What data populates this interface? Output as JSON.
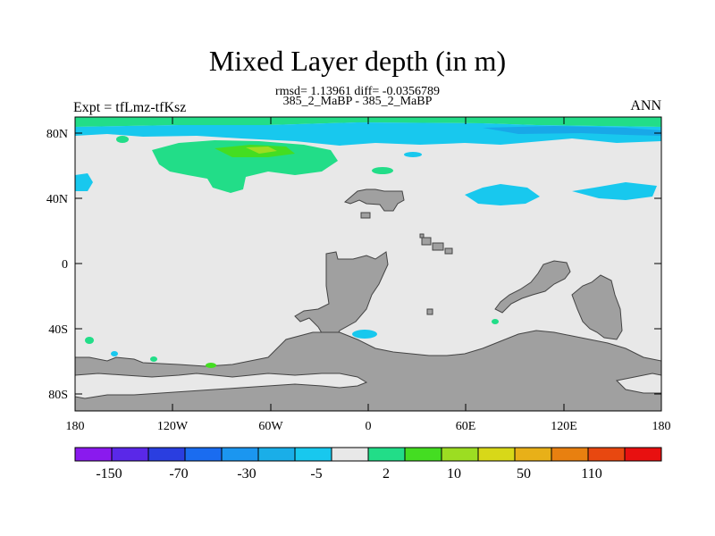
{
  "title": "Mixed Layer depth (in m)",
  "stats_line": "rmsd= 1.13961 diff= -0.0356789",
  "case_line": "385_2_MaBP - 385_2_MaBP",
  "experiment": "Expt = tfLmz-tfKsz",
  "season": "ANN",
  "map": {
    "lon_labels": [
      "180",
      "120W",
      "60W",
      "0",
      "60E",
      "120E",
      "180"
    ],
    "lat_labels": [
      "80N",
      "40N",
      "0",
      "40S",
      "80S"
    ],
    "ocean_color": "#e8e8e8",
    "land_color": "#a0a0a0",
    "regions": [
      {
        "name": "Arctic strip",
        "color": "#22dd88"
      },
      {
        "name": "North Pacific band",
        "color": "#22dd88"
      },
      {
        "name": "Subpolar Atlantic/Eurasia",
        "color": "#22c8ee"
      },
      {
        "name": "Siberian shelf",
        "color": "#18a8e8"
      },
      {
        "name": "Southern Ocean spots",
        "color": "#22dd88"
      }
    ]
  },
  "colorbar": {
    "labels": [
      "-150",
      "-70",
      "-30",
      "-5",
      "2",
      "10",
      "50",
      "110"
    ],
    "colors": [
      "#8a1aee",
      "#5a28e8",
      "#2a3ee0",
      "#1a6cf0",
      "#1b96f0",
      "#1aaee8",
      "#18c8ee",
      "#e8e8e8",
      "#22dd88",
      "#44dd22",
      "#9cdd22",
      "#d8d818",
      "#e8b018",
      "#e88010",
      "#e84810",
      "#e81010"
    ]
  }
}
